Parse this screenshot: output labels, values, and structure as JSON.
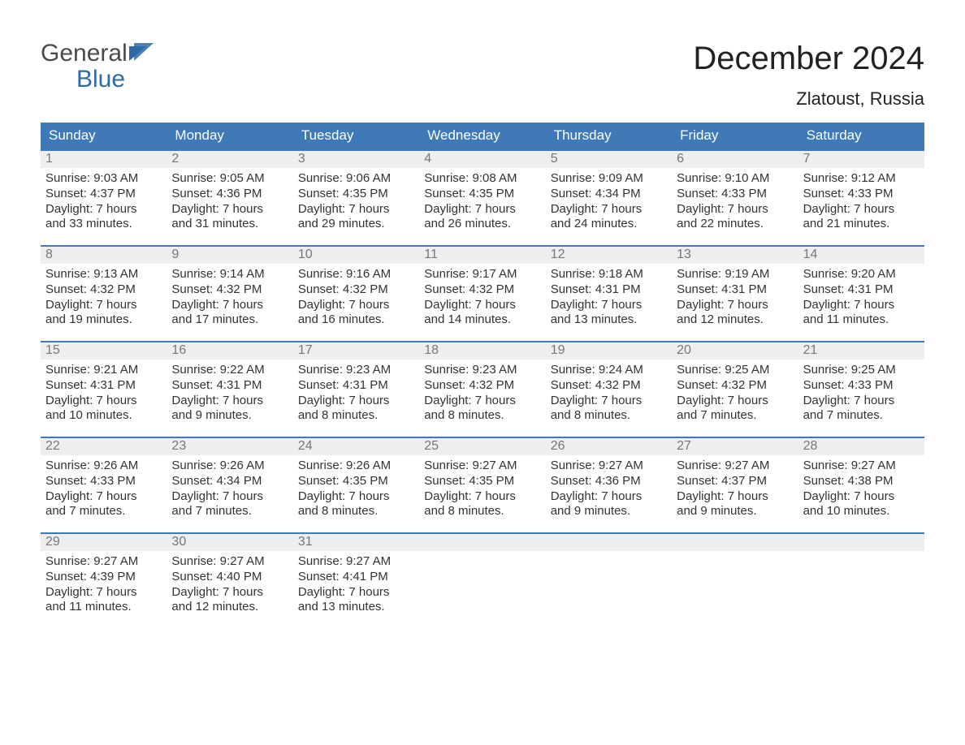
{
  "logo": {
    "text1": "General",
    "text2": "Blue"
  },
  "title": "December 2024",
  "location": "Zlatoust, Russia",
  "style": {
    "header_bg": "#3f79b7",
    "header_text": "#ffffff",
    "daynum_bg": "#eeeeee",
    "daynum_text": "#777777",
    "body_text": "#333333",
    "week_border": "#3f79b7",
    "page_bg": "#ffffff",
    "logo_blue": "#2f6aa8",
    "title_color": "#222222",
    "font_family": "Arial, Helvetica, sans-serif",
    "title_fontsize": 40,
    "location_fontsize": 22,
    "dow_fontsize": 17,
    "body_fontsize": 15
  },
  "days_of_week": [
    "Sunday",
    "Monday",
    "Tuesday",
    "Wednesday",
    "Thursday",
    "Friday",
    "Saturday"
  ],
  "weeks": [
    [
      {
        "n": "1",
        "sr": "Sunrise: 9:03 AM",
        "ss": "Sunset: 4:37 PM",
        "d1": "Daylight: 7 hours",
        "d2": "and 33 minutes."
      },
      {
        "n": "2",
        "sr": "Sunrise: 9:05 AM",
        "ss": "Sunset: 4:36 PM",
        "d1": "Daylight: 7 hours",
        "d2": "and 31 minutes."
      },
      {
        "n": "3",
        "sr": "Sunrise: 9:06 AM",
        "ss": "Sunset: 4:35 PM",
        "d1": "Daylight: 7 hours",
        "d2": "and 29 minutes."
      },
      {
        "n": "4",
        "sr": "Sunrise: 9:08 AM",
        "ss": "Sunset: 4:35 PM",
        "d1": "Daylight: 7 hours",
        "d2": "and 26 minutes."
      },
      {
        "n": "5",
        "sr": "Sunrise: 9:09 AM",
        "ss": "Sunset: 4:34 PM",
        "d1": "Daylight: 7 hours",
        "d2": "and 24 minutes."
      },
      {
        "n": "6",
        "sr": "Sunrise: 9:10 AM",
        "ss": "Sunset: 4:33 PM",
        "d1": "Daylight: 7 hours",
        "d2": "and 22 minutes."
      },
      {
        "n": "7",
        "sr": "Sunrise: 9:12 AM",
        "ss": "Sunset: 4:33 PM",
        "d1": "Daylight: 7 hours",
        "d2": "and 21 minutes."
      }
    ],
    [
      {
        "n": "8",
        "sr": "Sunrise: 9:13 AM",
        "ss": "Sunset: 4:32 PM",
        "d1": "Daylight: 7 hours",
        "d2": "and 19 minutes."
      },
      {
        "n": "9",
        "sr": "Sunrise: 9:14 AM",
        "ss": "Sunset: 4:32 PM",
        "d1": "Daylight: 7 hours",
        "d2": "and 17 minutes."
      },
      {
        "n": "10",
        "sr": "Sunrise: 9:16 AM",
        "ss": "Sunset: 4:32 PM",
        "d1": "Daylight: 7 hours",
        "d2": "and 16 minutes."
      },
      {
        "n": "11",
        "sr": "Sunrise: 9:17 AM",
        "ss": "Sunset: 4:32 PM",
        "d1": "Daylight: 7 hours",
        "d2": "and 14 minutes."
      },
      {
        "n": "12",
        "sr": "Sunrise: 9:18 AM",
        "ss": "Sunset: 4:31 PM",
        "d1": "Daylight: 7 hours",
        "d2": "and 13 minutes."
      },
      {
        "n": "13",
        "sr": "Sunrise: 9:19 AM",
        "ss": "Sunset: 4:31 PM",
        "d1": "Daylight: 7 hours",
        "d2": "and 12 minutes."
      },
      {
        "n": "14",
        "sr": "Sunrise: 9:20 AM",
        "ss": "Sunset: 4:31 PM",
        "d1": "Daylight: 7 hours",
        "d2": "and 11 minutes."
      }
    ],
    [
      {
        "n": "15",
        "sr": "Sunrise: 9:21 AM",
        "ss": "Sunset: 4:31 PM",
        "d1": "Daylight: 7 hours",
        "d2": "and 10 minutes."
      },
      {
        "n": "16",
        "sr": "Sunrise: 9:22 AM",
        "ss": "Sunset: 4:31 PM",
        "d1": "Daylight: 7 hours",
        "d2": "and 9 minutes."
      },
      {
        "n": "17",
        "sr": "Sunrise: 9:23 AM",
        "ss": "Sunset: 4:31 PM",
        "d1": "Daylight: 7 hours",
        "d2": "and 8 minutes."
      },
      {
        "n": "18",
        "sr": "Sunrise: 9:23 AM",
        "ss": "Sunset: 4:32 PM",
        "d1": "Daylight: 7 hours",
        "d2": "and 8 minutes."
      },
      {
        "n": "19",
        "sr": "Sunrise: 9:24 AM",
        "ss": "Sunset: 4:32 PM",
        "d1": "Daylight: 7 hours",
        "d2": "and 8 minutes."
      },
      {
        "n": "20",
        "sr": "Sunrise: 9:25 AM",
        "ss": "Sunset: 4:32 PM",
        "d1": "Daylight: 7 hours",
        "d2": "and 7 minutes."
      },
      {
        "n": "21",
        "sr": "Sunrise: 9:25 AM",
        "ss": "Sunset: 4:33 PM",
        "d1": "Daylight: 7 hours",
        "d2": "and 7 minutes."
      }
    ],
    [
      {
        "n": "22",
        "sr": "Sunrise: 9:26 AM",
        "ss": "Sunset: 4:33 PM",
        "d1": "Daylight: 7 hours",
        "d2": "and 7 minutes."
      },
      {
        "n": "23",
        "sr": "Sunrise: 9:26 AM",
        "ss": "Sunset: 4:34 PM",
        "d1": "Daylight: 7 hours",
        "d2": "and 7 minutes."
      },
      {
        "n": "24",
        "sr": "Sunrise: 9:26 AM",
        "ss": "Sunset: 4:35 PM",
        "d1": "Daylight: 7 hours",
        "d2": "and 8 minutes."
      },
      {
        "n": "25",
        "sr": "Sunrise: 9:27 AM",
        "ss": "Sunset: 4:35 PM",
        "d1": "Daylight: 7 hours",
        "d2": "and 8 minutes."
      },
      {
        "n": "26",
        "sr": "Sunrise: 9:27 AM",
        "ss": "Sunset: 4:36 PM",
        "d1": "Daylight: 7 hours",
        "d2": "and 9 minutes."
      },
      {
        "n": "27",
        "sr": "Sunrise: 9:27 AM",
        "ss": "Sunset: 4:37 PM",
        "d1": "Daylight: 7 hours",
        "d2": "and 9 minutes."
      },
      {
        "n": "28",
        "sr": "Sunrise: 9:27 AM",
        "ss": "Sunset: 4:38 PM",
        "d1": "Daylight: 7 hours",
        "d2": "and 10 minutes."
      }
    ],
    [
      {
        "n": "29",
        "sr": "Sunrise: 9:27 AM",
        "ss": "Sunset: 4:39 PM",
        "d1": "Daylight: 7 hours",
        "d2": "and 11 minutes."
      },
      {
        "n": "30",
        "sr": "Sunrise: 9:27 AM",
        "ss": "Sunset: 4:40 PM",
        "d1": "Daylight: 7 hours",
        "d2": "and 12 minutes."
      },
      {
        "n": "31",
        "sr": "Sunrise: 9:27 AM",
        "ss": "Sunset: 4:41 PM",
        "d1": "Daylight: 7 hours",
        "d2": "and 13 minutes."
      },
      null,
      null,
      null,
      null
    ]
  ]
}
